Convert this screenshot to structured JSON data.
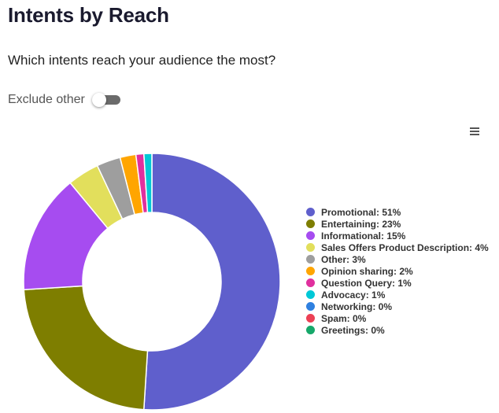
{
  "header": {
    "title": "Intents by Reach",
    "subtitle": "Which intents reach your audience the most?"
  },
  "toggle": {
    "label": "Exclude other",
    "checked": false
  },
  "menu": {
    "icon": "hamburger-menu-icon"
  },
  "chart_data": {
    "type": "pie",
    "style": "donut",
    "legend_position": "right",
    "series": [
      {
        "name": "Promotional",
        "label": "Promotional: 51%",
        "value": 51,
        "color": "#5f5fcc"
      },
      {
        "name": "Entertaining",
        "label": "Entertaining: 23%",
        "value": 23,
        "color": "#7e7e00"
      },
      {
        "name": "Informational",
        "label": "Informational: 15%",
        "value": 15,
        "color": "#a64cf0"
      },
      {
        "name": "Sales Offers Product Description",
        "label": "Sales Offers Product Description: 4%",
        "value": 4,
        "color": "#e2df5c"
      },
      {
        "name": "Other",
        "label": "Other: 3%",
        "value": 3,
        "color": "#9e9e9e"
      },
      {
        "name": "Opinion sharing",
        "label": "Opinion sharing: 2%",
        "value": 2,
        "color": "#ffa500"
      },
      {
        "name": "Question Query",
        "label": "Question Query: 1%",
        "value": 1,
        "color": "#e0309e"
      },
      {
        "name": "Advocacy",
        "label": "Advocacy: 1%",
        "value": 1,
        "color": "#00c8d7"
      },
      {
        "name": "Networking",
        "label": "Networking: 0%",
        "value": 0,
        "color": "#2f80e0"
      },
      {
        "name": "Spam",
        "label": "Spam: 0%",
        "value": 0,
        "color": "#ec4055"
      },
      {
        "name": "Greetings",
        "label": "Greetings: 0%",
        "value": 0,
        "color": "#16a86a"
      }
    ]
  }
}
